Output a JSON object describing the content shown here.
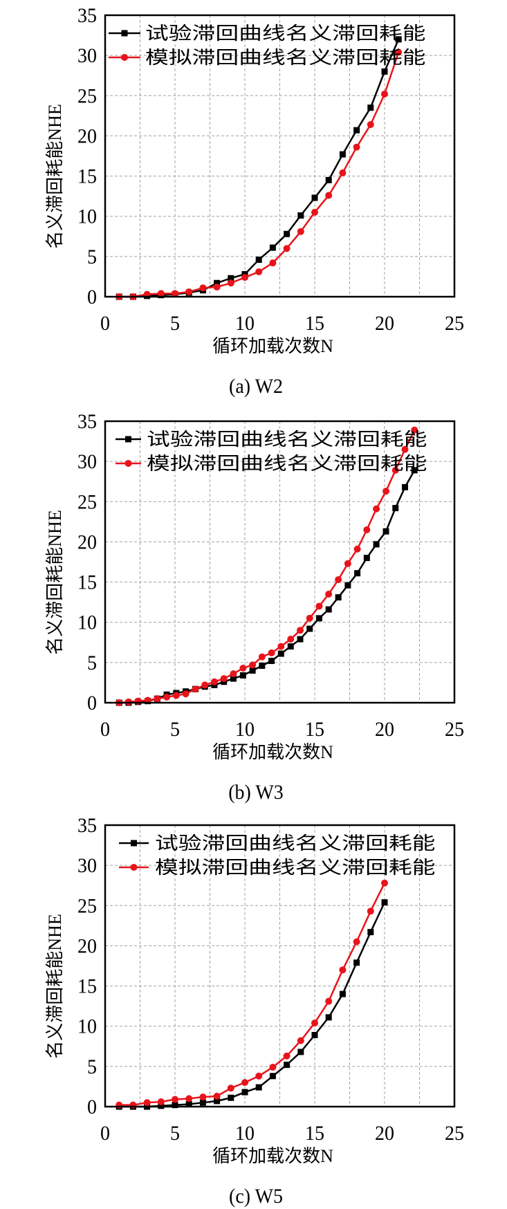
{
  "colors": {
    "experiment": "#000000",
    "simulation": "#e8141b",
    "grid": "#a0a0a0",
    "frame": "#000000"
  },
  "chart_data": [
    {
      "type": "line",
      "caption": "(a) W2",
      "xlabel": "循环加载次数N",
      "ylabel": "名义滞回耗能NHE",
      "xlim": [
        0,
        25
      ],
      "ylim": [
        0,
        35
      ],
      "xticks": [
        0,
        5,
        10,
        15,
        20,
        25
      ],
      "yticks": [
        0,
        5,
        10,
        15,
        20,
        25,
        30,
        35
      ],
      "grid": true,
      "legend_position": "top-left",
      "series": [
        {
          "name": "试验滞回曲线名义滞回耗能",
          "color": "#000000",
          "marker": "square",
          "x": [
            1,
            2,
            3,
            4,
            5,
            6,
            7,
            8,
            9,
            10,
            11,
            12,
            13,
            14,
            15,
            16,
            17,
            18,
            19,
            20,
            21
          ],
          "y": [
            0,
            0,
            0.1,
            0.2,
            0.3,
            0.5,
            0.8,
            1.7,
            2.3,
            2.8,
            4.6,
            6.1,
            7.8,
            10.1,
            12.3,
            14.5,
            17.7,
            20.7,
            23.5,
            28.0,
            32.0
          ]
        },
        {
          "name": "模拟滞回曲线名义滞回耗能",
          "color": "#e8141b",
          "marker": "circle",
          "x": [
            1,
            2,
            3,
            4,
            5,
            6,
            7,
            8,
            9,
            10,
            11,
            12,
            13,
            14,
            15,
            16,
            17,
            18,
            19,
            20,
            21
          ],
          "y": [
            0,
            0,
            0.3,
            0.4,
            0.4,
            0.6,
            1.1,
            1.2,
            1.7,
            2.4,
            3.1,
            4.2,
            6.0,
            8.1,
            10.5,
            12.6,
            15.4,
            18.6,
            21.4,
            25.2,
            30.4
          ]
        }
      ]
    },
    {
      "type": "line",
      "caption": "(b) W3",
      "xlabel": "循环加载次数N",
      "ylabel": "名义滞回耗能NHE",
      "xlim": [
        0,
        25
      ],
      "ylim": [
        0,
        35
      ],
      "xticks": [
        0,
        5,
        10,
        15,
        20,
        25
      ],
      "yticks": [
        0,
        5,
        10,
        15,
        20,
        25,
        30,
        35
      ],
      "grid": true,
      "legend_position": "top-left",
      "series": [
        {
          "name": "试验滞回曲线名义滞回耗能",
          "color": "#000000",
          "marker": "square",
          "x": [
            1,
            1.68,
            2.36,
            3.05,
            3.73,
            4.41,
            5.09,
            5.77,
            6.46,
            7.14,
            7.82,
            8.5,
            9.18,
            9.87,
            10.55,
            11.23,
            11.91,
            12.59,
            13.28,
            13.96,
            14.64,
            15.32,
            16.0,
            16.69,
            17.37,
            18.05,
            18.73,
            19.41,
            20.1,
            20.78,
            21.46,
            22.14
          ],
          "y": [
            0,
            0,
            0.1,
            0.2,
            0.5,
            1.0,
            1.2,
            1.4,
            1.7,
            2.0,
            2.2,
            2.6,
            3.0,
            3.4,
            4.0,
            4.6,
            5.2,
            6.1,
            7.0,
            7.9,
            9.2,
            10.5,
            11.6,
            13.1,
            14.6,
            16.1,
            18.0,
            19.7,
            21.3,
            24.2,
            26.8,
            28.9
          ]
        },
        {
          "name": "模拟滞回曲线名义滞回耗能",
          "color": "#e8141b",
          "marker": "circle",
          "x": [
            1,
            1.68,
            2.36,
            3.05,
            3.73,
            4.41,
            5.09,
            5.77,
            6.46,
            7.14,
            7.82,
            8.5,
            9.18,
            9.87,
            10.55,
            11.23,
            11.91,
            12.59,
            13.28,
            13.96,
            14.64,
            15.32,
            16.0,
            16.69,
            17.37,
            18.05,
            18.73,
            19.41,
            20.1,
            20.78,
            21.46,
            22.14
          ],
          "y": [
            0,
            0.1,
            0.2,
            0.3,
            0.5,
            0.7,
            0.9,
            1.1,
            1.7,
            2.2,
            2.6,
            3.0,
            3.6,
            4.3,
            4.7,
            5.7,
            6.2,
            7.0,
            7.9,
            9.0,
            10.5,
            12.0,
            13.5,
            15.3,
            17.3,
            19.1,
            21.5,
            24.1,
            26.3,
            28.9,
            31.5,
            33.9
          ]
        }
      ]
    },
    {
      "type": "line",
      "caption": "(c) W5",
      "xlabel": "循环加载次数N",
      "ylabel": "名义滞回耗能NHE",
      "xlim": [
        0,
        25
      ],
      "ylim": [
        0,
        35
      ],
      "xticks": [
        0,
        5,
        10,
        15,
        20,
        25
      ],
      "yticks": [
        0,
        5,
        10,
        15,
        20,
        25,
        30,
        35
      ],
      "grid": true,
      "legend_position": "top-left",
      "series": [
        {
          "name": "试验滞回曲线名义滞回耗能",
          "color": "#000000",
          "marker": "square",
          "x": [
            1,
            2,
            3,
            4,
            5,
            6,
            7,
            8,
            9,
            10,
            11,
            12,
            13,
            14,
            15,
            16,
            17,
            18,
            19,
            20
          ],
          "y": [
            0,
            0,
            0,
            0.1,
            0.2,
            0.3,
            0.5,
            0.7,
            1.1,
            1.8,
            2.4,
            3.8,
            5.2,
            6.8,
            8.9,
            11.1,
            14.0,
            17.9,
            21.7,
            25.4
          ]
        },
        {
          "name": "模拟滞回曲线名义滞回耗能",
          "color": "#e8141b",
          "marker": "circle",
          "x": [
            1,
            2,
            3,
            4,
            5,
            6,
            7,
            8,
            9,
            10,
            11,
            12,
            13,
            14,
            15,
            16,
            17,
            18,
            19,
            20
          ],
          "y": [
            0.2,
            0.2,
            0.5,
            0.6,
            0.9,
            1.0,
            1.2,
            1.3,
            2.3,
            3.0,
            3.8,
            4.9,
            6.3,
            8.2,
            10.4,
            13.1,
            17.0,
            20.5,
            24.3,
            27.8
          ]
        }
      ]
    }
  ]
}
